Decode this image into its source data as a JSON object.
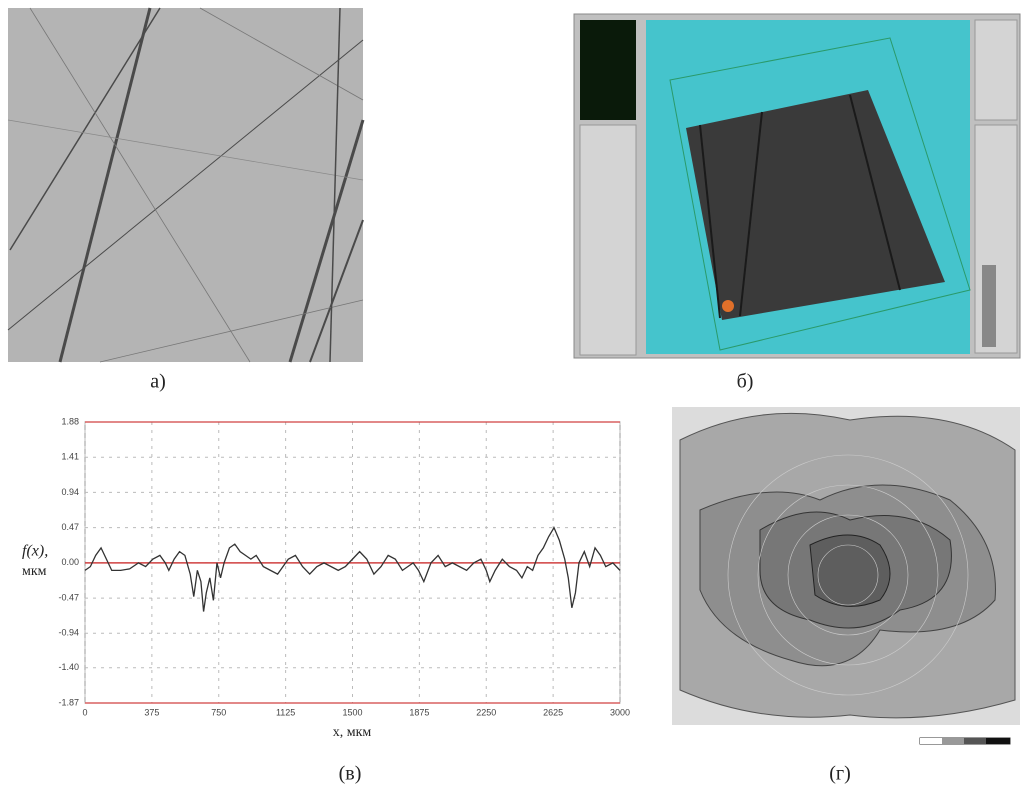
{
  "figure": {
    "captions": [
      "а)",
      "б)",
      "(в)",
      "(г)"
    ]
  },
  "chart_data": {
    "type": "line",
    "y_label": [
      "f(x),",
      "мкм"
    ],
    "x_label": "x, мкм",
    "x": [
      0,
      30,
      60,
      90,
      120,
      150,
      200,
      250,
      300,
      340,
      380,
      420,
      450,
      470,
      500,
      530,
      560,
      590,
      610,
      630,
      650,
      665,
      680,
      700,
      720,
      740,
      760,
      780,
      810,
      840,
      870,
      900,
      930,
      960,
      1000,
      1040,
      1080,
      1110,
      1140,
      1180,
      1220,
      1260,
      1300,
      1340,
      1380,
      1420,
      1460,
      1500,
      1540,
      1580,
      1620,
      1660,
      1700,
      1740,
      1780,
      1810,
      1840,
      1870,
      1900,
      1940,
      1980,
      2020,
      2060,
      2100,
      2140,
      2180,
      2220,
      2250,
      2270,
      2300,
      2340,
      2380,
      2420,
      2450,
      2480,
      2510,
      2540,
      2570,
      2600,
      2630,
      2660,
      2690,
      2710,
      2730,
      2750,
      2770,
      2800,
      2830,
      2860,
      2890,
      2920,
      2960,
      3000
    ],
    "series": [
      {
        "color": "#333333",
        "values": [
          -0.1,
          -0.05,
          0.1,
          0.2,
          0.05,
          -0.1,
          -0.1,
          -0.08,
          0.0,
          -0.05,
          0.05,
          0.1,
          0.0,
          -0.1,
          0.05,
          0.15,
          0.1,
          -0.15,
          -0.45,
          -0.1,
          -0.25,
          -0.65,
          -0.4,
          -0.2,
          -0.5,
          0.0,
          -0.2,
          0.0,
          0.2,
          0.25,
          0.15,
          0.1,
          0.05,
          0.1,
          -0.05,
          -0.1,
          -0.15,
          -0.05,
          0.05,
          0.1,
          -0.05,
          -0.15,
          -0.05,
          0.0,
          -0.05,
          -0.1,
          -0.05,
          0.05,
          0.15,
          0.05,
          -0.15,
          -0.05,
          0.1,
          0.05,
          -0.1,
          -0.05,
          0.0,
          -0.1,
          -0.25,
          0.0,
          0.1,
          -0.05,
          0.0,
          -0.05,
          -0.1,
          0.0,
          0.05,
          -0.1,
          -0.25,
          -0.1,
          0.05,
          -0.05,
          -0.1,
          -0.2,
          -0.05,
          -0.1,
          0.1,
          0.2,
          0.35,
          0.47,
          0.3,
          0.05,
          -0.2,
          -0.6,
          -0.4,
          0.0,
          0.15,
          -0.05,
          0.2,
          0.1,
          -0.05,
          0.0,
          -0.1
        ]
      }
    ],
    "xlim": [
      0,
      3000
    ],
    "xticks": [
      0,
      375,
      750,
      1125,
      1500,
      1875,
      2250,
      2625,
      3000
    ],
    "ylim": [
      -1.87,
      1.88
    ],
    "yticks": [
      -1.87,
      -0.94,
      {
        "value": -1.4,
        "label": "-1.40"
      },
      -0.47,
      {
        "value": 0,
        "label": "0.00"
      },
      0.47,
      0.94,
      1.41,
      1.88
    ],
    "grid": true,
    "zero_line_color": "#d04040"
  }
}
